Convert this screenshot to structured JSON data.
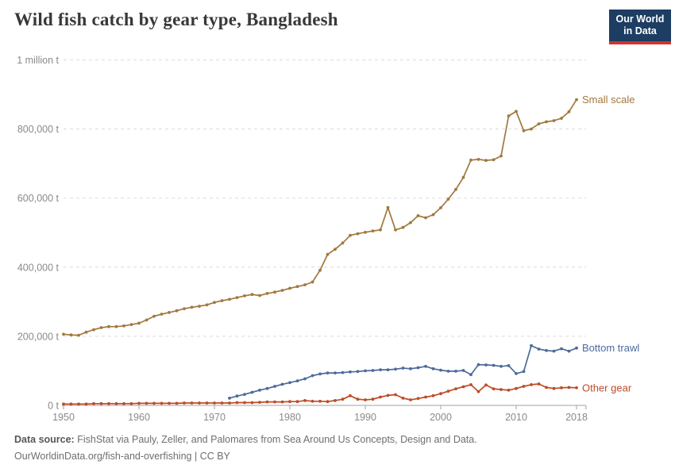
{
  "header": {
    "title": "Wild fish catch by gear type, Bangladesh",
    "logo_line1": "Our World",
    "logo_line2": "in Data"
  },
  "chart_data": {
    "type": "line",
    "title": "Wild fish catch by gear type, Bangladesh",
    "xlabel": "",
    "ylabel": "",
    "unit": "tonnes",
    "grid": "horizontal-dashed",
    "legend_position": "end-of-line-labels",
    "ylim": [
      0,
      1000000
    ],
    "yticks": [
      {
        "value": 0,
        "label": "0 t"
      },
      {
        "value": 200000,
        "label": "200,000 t"
      },
      {
        "value": 400000,
        "label": "400,000 t"
      },
      {
        "value": 600000,
        "label": "600,000 t"
      },
      {
        "value": 800000,
        "label": "800,000 t"
      },
      {
        "value": 1000000,
        "label": "1 million t"
      }
    ],
    "xticks": [
      1950,
      1960,
      1970,
      1980,
      1990,
      2000,
      2010,
      2018
    ],
    "x": [
      1950,
      1951,
      1952,
      1953,
      1954,
      1955,
      1956,
      1957,
      1958,
      1959,
      1960,
      1961,
      1962,
      1963,
      1964,
      1965,
      1966,
      1967,
      1968,
      1969,
      1970,
      1971,
      1972,
      1973,
      1974,
      1975,
      1976,
      1977,
      1978,
      1979,
      1980,
      1981,
      1982,
      1983,
      1984,
      1985,
      1986,
      1987,
      1988,
      1989,
      1990,
      1991,
      1992,
      1993,
      1994,
      1995,
      1996,
      1997,
      1998,
      1999,
      2000,
      2001,
      2002,
      2003,
      2004,
      2005,
      2006,
      2007,
      2008,
      2009,
      2010,
      2011,
      2012,
      2013,
      2014,
      2015,
      2016,
      2017,
      2018
    ],
    "series": [
      {
        "name": "Small scale",
        "color": "#A1783E",
        "values": [
          206000,
          204000,
          203000,
          212000,
          219000,
          225000,
          228000,
          228000,
          230000,
          234000,
          238000,
          247000,
          258000,
          264000,
          269000,
          274000,
          280000,
          284000,
          287000,
          291000,
          298000,
          303000,
          307000,
          312000,
          317000,
          321000,
          318000,
          324000,
          328000,
          333000,
          339000,
          344000,
          349000,
          357000,
          391000,
          437000,
          452000,
          470000,
          492000,
          497000,
          501000,
          505000,
          508000,
          573000,
          508000,
          515000,
          529000,
          549000,
          543000,
          552000,
          572000,
          597000,
          625000,
          660000,
          710000,
          712000,
          709000,
          711000,
          722000,
          838000,
          851000,
          795000,
          800000,
          815000,
          821000,
          824000,
          831000,
          850000,
          885000
        ]
      },
      {
        "name": "Bottom trawl",
        "color": "#4C6A9C",
        "values": [
          null,
          null,
          null,
          null,
          null,
          null,
          null,
          null,
          null,
          null,
          null,
          null,
          null,
          null,
          null,
          null,
          null,
          null,
          null,
          null,
          null,
          null,
          21000,
          27000,
          32000,
          38000,
          44000,
          49000,
          55000,
          61000,
          66000,
          71000,
          77000,
          86000,
          91000,
          94000,
          94000,
          95000,
          97000,
          98000,
          100000,
          101000,
          103000,
          103000,
          105000,
          108000,
          106000,
          109000,
          113000,
          106000,
          102000,
          99000,
          99000,
          101000,
          89000,
          118000,
          117000,
          116000,
          113000,
          115000,
          92000,
          98000,
          173000,
          163000,
          159000,
          157000,
          164000,
          157000,
          166000
        ]
      },
      {
        "name": "Other gear",
        "color": "#BE4B27",
        "values": [
          4000,
          4000,
          4000,
          4000,
          5000,
          5000,
          5000,
          5000,
          5000,
          5000,
          6000,
          6000,
          6000,
          6000,
          6000,
          6000,
          7000,
          7000,
          7000,
          7000,
          7000,
          7000,
          7000,
          8000,
          8000,
          8000,
          9000,
          10000,
          10000,
          10000,
          11000,
          11000,
          14000,
          12000,
          12000,
          11000,
          14000,
          18000,
          28000,
          18000,
          16000,
          18000,
          24000,
          29000,
          31000,
          21000,
          16000,
          20000,
          24000,
          28000,
          34000,
          41000,
          48000,
          54000,
          60000,
          40000,
          59000,
          48000,
          46000,
          44000,
          49000,
          55000,
          60000,
          62000,
          52000,
          49000,
          51000,
          52000,
          51000
        ]
      }
    ]
  },
  "footer": {
    "source_label": "Data source:",
    "source_text": " FishStat via Pauly, Zeller, and Palomares from Sea Around Us Concepts, Design and Data.",
    "url": "OurWorldinData.org/fish-and-overfishing",
    "separator": " | ",
    "license": "CC BY"
  },
  "style": {
    "grid_color": "#dcdcdc",
    "axis_color": "#a0a0a0",
    "tick_label_color": "#8a8a8a"
  }
}
